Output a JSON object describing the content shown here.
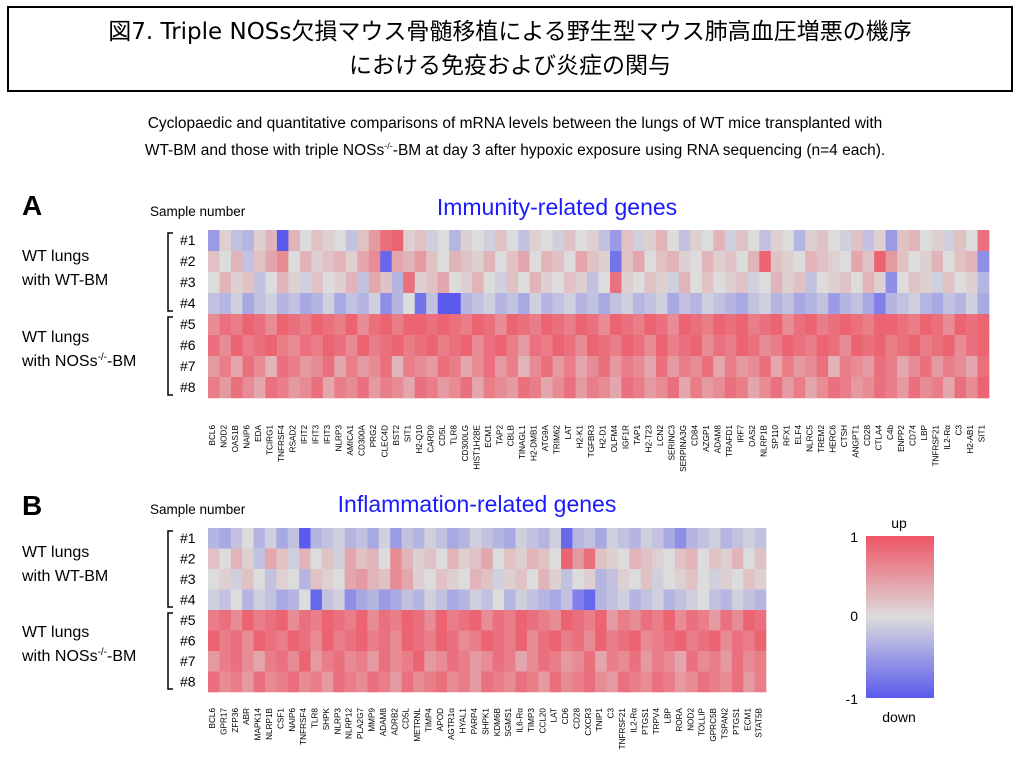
{
  "figure": {
    "title_line1": "図7. Triple NOSs欠損マウス骨髄移植による野生型マウス肺高血圧増悪の機序",
    "title_line2": "における免疫および炎症の関与",
    "subtitle_line1": "Cyclopaedic and quantitative comparisons of mRNA levels between the lungs of WT mice transplanted with",
    "subtitle_line2_a": "WT-BM and those with triple NOSs",
    "subtitle_line2_sup": "-/-",
    "subtitle_line2_b": "-BM at day 3 after hypoxic exposure using RNA sequencing (n=4 each)."
  },
  "colorscale": {
    "up_label": "up",
    "down_label": "down",
    "ticks": [
      "1",
      "0",
      "-1"
    ],
    "high_color": "#ee5566",
    "mid_color": "#dcdcdc",
    "low_color": "#5a5aee"
  },
  "chart_data": [
    {
      "type": "heatmap",
      "panel_label": "A",
      "title": "Immunity-related genes",
      "sample_axis_label": "Sample number",
      "rows": [
        "#1",
        "#2",
        "#3",
        "#4",
        "#5",
        "#6",
        "#7",
        "#8"
      ],
      "groups": [
        {
          "label_line1": "WT lungs",
          "label_line2": "with WT-BM",
          "rows": [
            "#1",
            "#2",
            "#3",
            "#4"
          ]
        },
        {
          "label_line1": "WT lungs",
          "label_line2_a": "with NOSs",
          "label_line2_sup": "-/-",
          "label_line2_b": "-BM",
          "rows": [
            "#5",
            "#6",
            "#7",
            "#8"
          ]
        }
      ],
      "columns": [
        "BCL6",
        "NOD2",
        "OAS1B",
        "NAIP6",
        "EDA",
        "TCIRG1",
        "TNFRSF4",
        "RSAD2",
        "IFIT2",
        "IFIT3",
        "IFIT3",
        "NLRP3",
        "AMICA1",
        "CD300A",
        "PRG2",
        "CLEC4D",
        "BST2",
        "SIT1",
        "H2-Q10",
        "CARD9",
        "CD5L",
        "TLR8",
        "CD300LG",
        "HIST1H2BE",
        "ECM1",
        "TAP2",
        "CBLB",
        "TINAGL1",
        "H2-DMB1",
        "ATG9A",
        "TRIM62",
        "LAT",
        "H2-K1",
        "TGFBR3",
        "H2-D1",
        "OLFM4",
        "IGF1R",
        "TAP1",
        "H2-T23",
        "LCN2",
        "SERINC3",
        "SERPINA3G",
        "CD84",
        "AZGP1",
        "ADAM8",
        "TRAFD1",
        "IRF7",
        "OAS2",
        "NLRP1B",
        "SP110",
        "RFX1",
        "ELF4",
        "NLRC5",
        "TREM2",
        "HERC6",
        "CTSH",
        "ANGPT1",
        "CD28",
        "CTLA4",
        "C4b",
        "ENPP2",
        "CD74",
        "LBP",
        "TNFRSF21",
        "IL2-Rα",
        "C3",
        "H2-AB1",
        "SIT1"
      ],
      "value_range": [
        -1,
        1
      ],
      "values": [
        [
          -0.5,
          0.1,
          -0.2,
          -0.3,
          0.1,
          0.3,
          -1.0,
          0.3,
          0.0,
          0.2,
          0.1,
          0.0,
          -0.2,
          0.2,
          0.5,
          0.8,
          0.9,
          0.1,
          0.2,
          -0.1,
          0.0,
          -0.3,
          0.1,
          0.0,
          -0.1,
          0.2,
          0.0,
          -0.2,
          0.1,
          0.0,
          -0.1,
          0.2,
          0.0,
          0.1,
          -0.2,
          -0.5,
          0.2,
          -0.1,
          0.1,
          0.3,
          0.0,
          -0.2,
          0.1,
          0.0,
          0.3,
          -0.1,
          0.2,
          0.0,
          -0.2,
          0.1,
          0.0,
          -0.3,
          0.1,
          0.2,
          0.0,
          -0.1,
          0.2,
          -0.2,
          0.1,
          -0.5,
          0.2,
          0.3,
          0.0,
          0.1,
          -0.1,
          0.2,
          0.0,
          0.8
        ],
        [
          0.2,
          0.0,
          0.3,
          -0.2,
          0.2,
          0.4,
          0.6,
          0.0,
          0.3,
          0.1,
          0.2,
          0.3,
          0.1,
          0.4,
          0.6,
          -0.9,
          0.4,
          0.3,
          0.5,
          0.2,
          0.0,
          0.3,
          0.2,
          0.1,
          0.3,
          0.0,
          0.2,
          0.4,
          0.0,
          0.3,
          0.2,
          0.0,
          0.4,
          0.2,
          0.1,
          -0.8,
          0.2,
          0.4,
          0.0,
          0.2,
          0.3,
          0.1,
          0.0,
          0.3,
          0.1,
          0.2,
          0.0,
          0.3,
          0.9,
          0.2,
          0.1,
          0.0,
          0.3,
          0.2,
          0.1,
          0.0,
          0.4,
          0.2,
          0.9,
          0.5,
          0.2,
          0.0,
          0.1,
          0.3,
          0.0,
          0.2,
          0.3,
          -0.6
        ],
        [
          0.0,
          0.3,
          0.1,
          0.2,
          -0.2,
          0.0,
          0.3,
          0.1,
          -0.1,
          0.2,
          0.0,
          0.1,
          0.3,
          -0.2,
          0.4,
          0.2,
          -0.3,
          0.8,
          0.1,
          0.2,
          0.4,
          0.0,
          0.1,
          0.3,
          0.0,
          -0.1,
          0.2,
          0.0,
          0.3,
          0.1,
          0.0,
          0.2,
          0.1,
          -0.2,
          0.0,
          0.8,
          0.1,
          0.0,
          0.2,
          0.1,
          -0.1,
          0.3,
          0.0,
          0.2,
          0.0,
          0.1,
          0.2,
          -0.1,
          0.0,
          0.3,
          0.1,
          0.2,
          -0.2,
          0.0,
          0.1,
          0.2,
          0.0,
          0.3,
          0.1,
          -0.6,
          0.0,
          0.2,
          0.1,
          -0.1,
          0.2,
          0.0,
          0.1,
          -0.3
        ],
        [
          -0.2,
          -0.3,
          -0.1,
          -0.4,
          -0.2,
          -0.1,
          -0.3,
          -0.2,
          -0.4,
          -0.3,
          -0.1,
          -0.4,
          -0.2,
          -0.3,
          -0.1,
          -0.6,
          -0.3,
          0.0,
          -0.8,
          -0.2,
          -1.0,
          -1.0,
          -0.3,
          -0.2,
          -0.1,
          -0.3,
          -0.2,
          -0.4,
          -0.1,
          -0.3,
          -0.2,
          -0.1,
          -0.3,
          -0.2,
          -0.4,
          -0.2,
          -0.1,
          -0.3,
          -0.2,
          -0.1,
          -0.4,
          -0.2,
          -0.3,
          -0.1,
          -0.2,
          -0.3,
          -0.4,
          -0.2,
          -0.1,
          -0.3,
          -0.2,
          -0.4,
          -0.3,
          -0.2,
          -0.5,
          -0.3,
          -0.2,
          -0.4,
          -0.7,
          -0.3,
          -0.2,
          -0.1,
          -0.3,
          -0.4,
          -0.2,
          -0.3,
          -0.1,
          -0.4
        ],
        [
          0.6,
          0.8,
          0.7,
          0.9,
          0.8,
          0.6,
          0.9,
          0.8,
          0.7,
          0.9,
          0.8,
          0.7,
          0.9,
          0.6,
          0.8,
          0.9,
          0.7,
          0.9,
          0.9,
          0.8,
          0.9,
          0.8,
          0.7,
          0.9,
          0.8,
          0.6,
          0.9,
          0.8,
          0.7,
          0.9,
          0.8,
          0.7,
          0.9,
          0.8,
          0.6,
          0.9,
          0.8,
          0.7,
          0.9,
          0.8,
          0.6,
          0.9,
          0.8,
          0.7,
          0.9,
          0.8,
          0.9,
          0.7,
          0.8,
          0.9,
          0.6,
          0.8,
          0.9,
          0.7,
          0.8,
          0.9,
          0.8,
          0.7,
          0.9,
          0.9,
          0.8,
          0.7,
          0.9,
          0.8,
          0.6,
          0.9,
          0.8,
          0.9
        ],
        [
          0.8,
          0.6,
          0.9,
          0.7,
          0.8,
          0.9,
          0.7,
          0.6,
          0.8,
          0.7,
          0.9,
          0.8,
          0.6,
          0.9,
          0.7,
          0.8,
          0.9,
          0.7,
          0.8,
          0.9,
          0.7,
          0.8,
          0.9,
          0.6,
          0.8,
          0.9,
          0.7,
          0.5,
          0.8,
          0.7,
          0.9,
          0.8,
          0.6,
          0.9,
          0.8,
          0.7,
          0.9,
          0.8,
          0.6,
          0.9,
          0.7,
          0.8,
          0.9,
          0.6,
          0.8,
          0.7,
          0.9,
          0.8,
          0.6,
          0.7,
          0.9,
          0.8,
          0.7,
          0.9,
          0.8,
          0.6,
          0.9,
          0.8,
          0.9,
          0.7,
          0.8,
          0.9,
          0.7,
          0.8,
          0.9,
          0.6,
          0.8,
          0.9
        ],
        [
          0.5,
          0.7,
          0.4,
          0.8,
          0.6,
          0.3,
          0.8,
          0.7,
          0.5,
          0.6,
          0.8,
          0.4,
          0.7,
          0.5,
          0.6,
          0.8,
          0.3,
          0.7,
          0.6,
          0.5,
          0.8,
          0.7,
          0.4,
          0.6,
          0.8,
          0.5,
          0.7,
          0.3,
          0.6,
          0.8,
          0.5,
          0.7,
          0.4,
          0.6,
          0.8,
          0.5,
          0.7,
          0.6,
          0.4,
          0.8,
          0.5,
          0.7,
          0.6,
          0.8,
          0.4,
          0.7,
          0.5,
          0.6,
          0.8,
          0.4,
          0.7,
          0.5,
          0.6,
          0.8,
          0.3,
          0.7,
          0.6,
          0.5,
          0.8,
          0.7,
          0.4,
          0.6,
          0.8,
          0.5,
          0.7,
          0.6,
          0.4,
          0.8
        ],
        [
          0.7,
          0.5,
          0.8,
          0.6,
          0.4,
          0.8,
          0.7,
          0.5,
          0.6,
          0.8,
          0.4,
          0.7,
          0.6,
          0.8,
          0.5,
          0.7,
          0.6,
          0.4,
          0.8,
          0.7,
          0.5,
          0.6,
          0.8,
          0.4,
          0.7,
          0.6,
          0.5,
          0.8,
          0.7,
          0.4,
          0.6,
          0.8,
          0.5,
          0.7,
          0.6,
          0.4,
          0.8,
          0.7,
          0.5,
          0.6,
          0.8,
          0.4,
          0.7,
          0.5,
          0.6,
          0.8,
          0.7,
          0.4,
          0.6,
          0.8,
          0.5,
          0.7,
          0.4,
          0.6,
          0.8,
          0.7,
          0.5,
          0.6,
          0.8,
          0.7,
          0.5,
          0.8,
          0.6,
          0.7,
          0.4,
          0.8,
          0.6,
          0.9
        ]
      ]
    },
    {
      "type": "heatmap",
      "panel_label": "B",
      "title": "Inflammation-related genes",
      "sample_axis_label": "Sample number",
      "rows": [
        "#1",
        "#2",
        "#3",
        "#4",
        "#5",
        "#6",
        "#7",
        "#8"
      ],
      "groups": [
        {
          "label_line1": "WT lungs",
          "label_line2": "with WT-BM",
          "rows": [
            "#1",
            "#2",
            "#3",
            "#4"
          ]
        },
        {
          "label_line1": "WT lungs",
          "label_line2_a": "with NOSs",
          "label_line2_sup": "-/-",
          "label_line2_b": "-BM",
          "rows": [
            "#5",
            "#6",
            "#7",
            "#8"
          ]
        }
      ],
      "columns": [
        "BCL6",
        "GPR17",
        "ZFP36",
        "ABR",
        "MAPK14",
        "NLRP1B",
        "CSF1",
        "NAIP6",
        "TNFRSF4",
        "TLR8",
        "SHPK",
        "NLRP3",
        "NLRP12",
        "PLA2G7",
        "MMP9",
        "ADAM8",
        "ADRB2",
        "CD5L",
        "METRNL",
        "TIMP4",
        "APOD",
        "AGTR1α",
        "HYAL1",
        "PARP4",
        "SHPK1",
        "KDM6B",
        "SGMS1",
        "IL6-Rα",
        "TIMP3",
        "CCL20",
        "LAT",
        "CD6",
        "CD28",
        "CXCR3",
        "TNIP1",
        "C3",
        "TNFRSF21",
        "IL2-Rα",
        "PTGS1",
        "TRPV4",
        "LBP",
        "RORA",
        "NOD2",
        "TOLLIP",
        "GPRC5B",
        "TSPAN2",
        "PTGS1",
        "ECM1",
        "STAT5B"
      ],
      "value_range": [
        -1,
        1
      ],
      "values": [
        [
          -0.3,
          -0.4,
          -0.2,
          0.0,
          -0.3,
          -0.1,
          -0.4,
          -0.2,
          -1.0,
          -0.3,
          -0.2,
          -0.1,
          -0.3,
          -0.2,
          -0.4,
          -0.1,
          -0.5,
          -0.2,
          -0.3,
          -0.1,
          -0.2,
          -0.4,
          -0.3,
          -0.1,
          -0.2,
          -0.3,
          -0.4,
          -0.1,
          -0.2,
          -0.3,
          -0.1,
          -0.9,
          -0.3,
          -0.2,
          -0.4,
          -0.1,
          -0.2,
          -0.3,
          -0.1,
          -0.2,
          -0.4,
          -0.6,
          -0.3,
          -0.2,
          -0.1,
          -0.3,
          -0.2,
          -0.1,
          -0.2
        ],
        [
          0.2,
          0.0,
          0.3,
          0.1,
          -0.2,
          0.4,
          0.2,
          -0.1,
          0.3,
          0.0,
          0.2,
          -0.1,
          0.4,
          0.2,
          0.3,
          0.0,
          0.6,
          0.3,
          0.1,
          0.2,
          0.0,
          0.3,
          0.1,
          0.2,
          0.4,
          0.0,
          0.2,
          0.1,
          0.3,
          0.2,
          0.0,
          0.9,
          0.5,
          0.8,
          0.2,
          0.1,
          0.0,
          0.3,
          0.2,
          0.1,
          0.0,
          0.2,
          0.3,
          0.0,
          0.2,
          0.1,
          0.3,
          0.0,
          0.2
        ],
        [
          0.0,
          0.1,
          -0.1,
          0.2,
          0.0,
          -0.2,
          0.1,
          0.0,
          -0.3,
          0.2,
          0.1,
          0.0,
          0.4,
          0.5,
          0.3,
          0.2,
          0.6,
          0.4,
          0.1,
          0.0,
          0.2,
          0.1,
          0.0,
          0.3,
          0.2,
          -0.1,
          0.1,
          0.2,
          0.0,
          0.3,
          0.1,
          -0.2,
          0.0,
          0.1,
          -0.3,
          -0.2,
          0.1,
          0.0,
          0.2,
          -0.1,
          0.0,
          0.1,
          0.2,
          0.0,
          -0.1,
          0.1,
          0.0,
          0.2,
          0.1
        ],
        [
          -0.1,
          -0.2,
          0.0,
          -0.3,
          -0.1,
          -0.2,
          -0.4,
          -0.3,
          0.0,
          -0.9,
          -0.2,
          -0.1,
          -0.6,
          -0.4,
          -0.3,
          -0.5,
          -0.4,
          -0.2,
          -0.3,
          -0.1,
          -0.2,
          -0.4,
          -0.3,
          -0.1,
          -0.2,
          0.0,
          -0.3,
          -0.1,
          -0.2,
          -0.3,
          -0.4,
          -0.2,
          -0.7,
          -0.9,
          -0.3,
          -0.2,
          -0.1,
          -0.3,
          -0.2,
          -0.1,
          -0.3,
          -0.2,
          -0.1,
          0.0,
          -0.2,
          -0.3,
          -0.1,
          -0.2,
          -0.3
        ],
        [
          0.7,
          0.8,
          0.6,
          0.9,
          0.7,
          0.8,
          0.9,
          0.6,
          0.8,
          0.7,
          0.9,
          0.8,
          0.7,
          0.9,
          0.6,
          0.8,
          0.7,
          0.9,
          0.8,
          0.6,
          0.9,
          0.7,
          0.8,
          0.9,
          0.6,
          0.8,
          0.7,
          0.9,
          0.8,
          0.7,
          0.6,
          0.9,
          0.8,
          0.7,
          0.9,
          0.5,
          0.7,
          0.6,
          0.8,
          0.7,
          0.9,
          0.6,
          0.8,
          0.7,
          0.5,
          0.8,
          0.6,
          0.9,
          0.8
        ],
        [
          0.9,
          0.7,
          0.8,
          0.6,
          0.9,
          0.8,
          0.7,
          0.9,
          0.8,
          0.6,
          0.9,
          0.7,
          0.8,
          0.9,
          0.7,
          0.8,
          0.6,
          0.9,
          0.8,
          0.7,
          0.9,
          0.8,
          0.6,
          0.7,
          0.9,
          0.8,
          0.7,
          0.9,
          0.6,
          0.8,
          0.9,
          0.7,
          0.8,
          0.6,
          0.9,
          0.7,
          0.8,
          0.9,
          0.6,
          0.7,
          0.8,
          0.9,
          0.7,
          0.8,
          0.9,
          0.6,
          0.8,
          0.7,
          0.9
        ],
        [
          0.5,
          0.7,
          0.8,
          0.6,
          0.4,
          0.7,
          0.8,
          0.6,
          0.9,
          0.5,
          0.7,
          0.8,
          0.6,
          0.7,
          0.5,
          0.8,
          0.6,
          0.7,
          0.9,
          0.5,
          0.6,
          0.8,
          0.7,
          0.5,
          0.6,
          0.8,
          0.7,
          0.4,
          0.6,
          0.8,
          0.7,
          0.5,
          0.6,
          0.8,
          0.4,
          0.7,
          0.6,
          0.8,
          0.5,
          0.7,
          0.6,
          0.4,
          0.8,
          0.6,
          0.7,
          0.5,
          0.8,
          0.6,
          0.7
        ],
        [
          0.8,
          0.6,
          0.7,
          0.5,
          0.8,
          0.6,
          0.7,
          0.8,
          0.6,
          0.7,
          0.5,
          0.8,
          0.7,
          0.6,
          0.8,
          0.7,
          0.5,
          0.8,
          0.6,
          0.7,
          0.8,
          0.6,
          0.7,
          0.5,
          0.8,
          0.7,
          0.6,
          0.8,
          0.7,
          0.5,
          0.8,
          0.6,
          0.7,
          0.8,
          0.6,
          0.5,
          0.8,
          0.7,
          0.6,
          0.8,
          0.7,
          0.5,
          0.6,
          0.8,
          0.7,
          0.6,
          0.8,
          0.5,
          0.7
        ]
      ]
    }
  ]
}
